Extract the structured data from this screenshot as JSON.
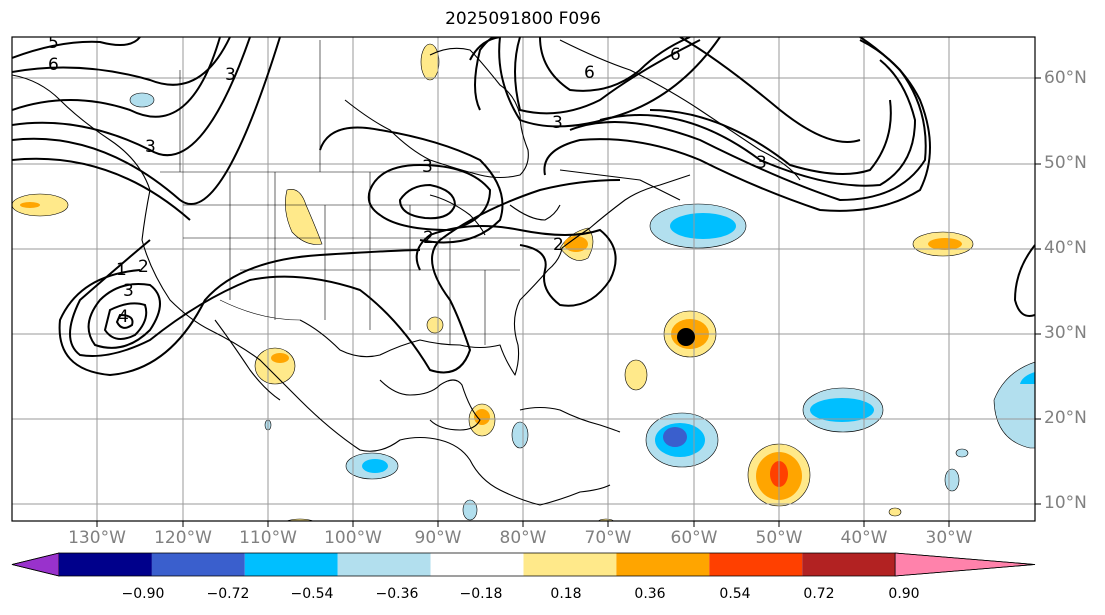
{
  "title": "2025091800 F096",
  "lat_labels": [
    "60°N",
    "50°N",
    "40°N",
    "30°N",
    "20°N",
    "10°N"
  ],
  "lon_labels": [
    "130°W",
    "120°W",
    "110°W",
    "100°W",
    "90°W",
    "80°W",
    "70°W",
    "60°W",
    "50°W",
    "40°W",
    "30°W"
  ],
  "colorbar": {
    "colors": [
      "#9932cc",
      "#00008b",
      "#3a5fcd",
      "#00bfff",
      "#b2dfee",
      "#ffffff",
      "#ffe98a",
      "#ffa500",
      "#ff4000",
      "#b22222",
      "#ff82ab"
    ],
    "tick_labels": [
      "−0.90",
      "−0.72",
      "−0.54",
      "−0.36",
      "−0.18",
      "0.18",
      "0.36",
      "0.54",
      "0.72",
      "0.90"
    ]
  },
  "contour_labels": [
    "5",
    "6",
    "1",
    "2",
    "3",
    "4",
    "3",
    "3",
    "2",
    "2",
    "6",
    "6",
    "3",
    "3",
    "3"
  ],
  "storm_marker": {
    "lat": 30,
    "lon": "60°W"
  }
}
